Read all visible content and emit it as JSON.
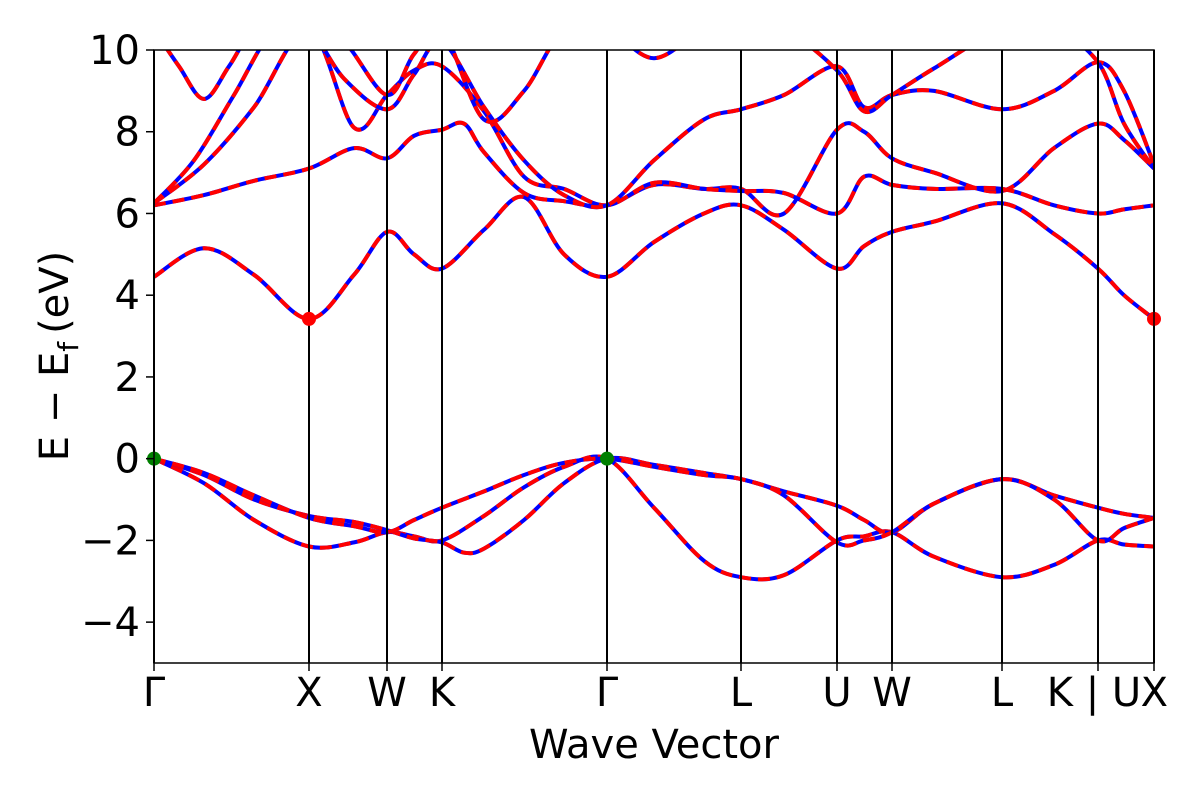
{
  "chart_data": {
    "type": "line",
    "title": "",
    "xlabel": "Wave Vector",
    "ylabel_main": "E − E",
    "ylabel_subscript": "f",
    "ylabel_unit": "(eV)",
    "ylim": [
      -5,
      10
    ],
    "xlim": [
      0,
      1
    ],
    "yticks": [
      -4,
      -2,
      0,
      2,
      4,
      6,
      8,
      10
    ],
    "ytick_labels": [
      "−4",
      "−2",
      "0",
      "2",
      "4",
      "6",
      "8",
      "10"
    ],
    "kpoints": [
      {
        "label": "Γ",
        "x": 0.0
      },
      {
        "label": "X",
        "x": 0.155
      },
      {
        "label": "W",
        "x": 0.233
      },
      {
        "label": "K",
        "x": 0.288
      },
      {
        "label": "Γ",
        "x": 0.453
      },
      {
        "label": "L",
        "x": 0.587
      },
      {
        "label": "U",
        "x": 0.683
      },
      {
        "label": "W",
        "x": 0.738
      },
      {
        "label": "L",
        "x": 0.848
      },
      {
        "label": "K | U",
        "x": 0.944
      },
      {
        "label": "X",
        "x": 1.0
      }
    ],
    "colors": {
      "band_solid": "#0000ff",
      "band_dashed": "#ff0000",
      "cbm": "#ff0000",
      "vbm": "#008000",
      "axis": "#000000"
    },
    "band_extrema": {
      "cbm": [
        {
          "x": 0.155,
          "y": 3.42
        },
        {
          "x": 1.0,
          "y": 3.42
        }
      ],
      "vbm": [
        {
          "x": 0.0,
          "y": 0.0
        },
        {
          "x": 0.453,
          "y": 0.0
        }
      ]
    },
    "bands": [
      {
        "x": [
          0,
          0.05,
          0.1,
          0.155,
          0.2,
          0.233,
          0.26,
          0.288,
          0.33,
          0.37,
          0.41,
          0.453,
          0.5,
          0.55,
          0.587,
          0.63,
          0.683,
          0.71,
          0.738,
          0.78,
          0.848,
          0.9,
          0.944,
          0.97,
          1.0
        ],
        "y": [
          0,
          -0.6,
          -1.5,
          -2.15,
          -2.05,
          -1.8,
          -1.9,
          -2.0,
          -1.4,
          -0.7,
          -0.2,
          0,
          -1.2,
          -2.5,
          -2.9,
          -2.85,
          -2.0,
          -1.9,
          -1.8,
          -2.4,
          -2.9,
          -2.6,
          -2.0,
          -2.1,
          -2.15
        ]
      },
      {
        "x": [
          0,
          0.05,
          0.1,
          0.155,
          0.2,
          0.233,
          0.26,
          0.288,
          0.31,
          0.33,
          0.37,
          0.41,
          0.453,
          0.5,
          0.55,
          0.587,
          0.63,
          0.683,
          0.71,
          0.738,
          0.78,
          0.848,
          0.9,
          0.944,
          0.97,
          1.0
        ],
        "y": [
          0,
          -0.4,
          -1.0,
          -1.4,
          -1.55,
          -1.75,
          -1.95,
          -2.05,
          -2.3,
          -2.2,
          -1.5,
          -0.6,
          0,
          -0.15,
          -0.35,
          -0.5,
          -0.8,
          -1.15,
          -1.5,
          -1.8,
          -1.1,
          -0.5,
          -0.9,
          -1.2,
          -1.35,
          -1.45
        ]
      },
      {
        "x": [
          0,
          0.05,
          0.1,
          0.155,
          0.2,
          0.233,
          0.26,
          0.288,
          0.33,
          0.37,
          0.41,
          0.453,
          0.5,
          0.55,
          0.587,
          0.63,
          0.683,
          0.71,
          0.738,
          0.78,
          0.848,
          0.9,
          0.944,
          0.97,
          1.0
        ],
        "y": [
          0,
          -0.35,
          -0.9,
          -1.45,
          -1.65,
          -1.8,
          -1.5,
          -1.2,
          -0.8,
          -0.4,
          -0.1,
          0,
          -0.2,
          -0.4,
          -0.5,
          -0.9,
          -2.05,
          -2.0,
          -1.8,
          -1.1,
          -0.5,
          -1.0,
          -2.0,
          -1.7,
          -1.45
        ]
      },
      {
        "x": [
          0,
          0.05,
          0.1,
          0.155,
          0.2,
          0.233,
          0.26,
          0.288,
          0.33,
          0.37,
          0.41,
          0.453,
          0.5,
          0.55,
          0.587,
          0.63,
          0.683,
          0.71,
          0.738,
          0.78,
          0.848,
          0.9,
          0.944,
          0.97,
          1.0
        ],
        "y": [
          4.45,
          5.15,
          4.5,
          3.42,
          4.5,
          5.55,
          5.0,
          4.65,
          5.6,
          6.4,
          5.0,
          4.45,
          5.3,
          6.0,
          6.2,
          5.6,
          4.65,
          5.2,
          5.55,
          5.8,
          6.25,
          5.5,
          4.65,
          4.0,
          3.42
        ]
      },
      {
        "x": [
          0,
          0.05,
          0.1,
          0.155,
          0.2,
          0.233,
          0.26,
          0.288,
          0.31,
          0.33,
          0.37,
          0.41,
          0.453,
          0.5,
          0.55,
          0.587,
          0.63,
          0.683,
          0.71,
          0.738,
          0.78,
          0.848,
          0.9,
          0.944,
          0.97,
          1.0
        ],
        "y": [
          6.2,
          6.45,
          6.8,
          7.1,
          7.6,
          7.35,
          7.9,
          8.05,
          8.2,
          7.5,
          6.5,
          6.3,
          6.2,
          6.7,
          6.6,
          6.6,
          6.0,
          8.05,
          8.0,
          7.35,
          7.0,
          6.55,
          7.6,
          8.2,
          7.8,
          7.1
        ]
      },
      {
        "x": [
          0,
          0.05,
          0.1,
          0.155,
          0.2,
          0.233,
          0.26,
          0.288,
          0.33,
          0.37,
          0.41,
          0.453,
          0.5,
          0.55,
          0.587,
          0.63,
          0.683,
          0.71,
          0.738,
          0.78,
          0.848,
          0.9,
          0.944,
          0.97,
          1.0
        ],
        "y": [
          6.25,
          7.2,
          8.6,
          10.5,
          8.1,
          8.9,
          9.5,
          9.6,
          8.5,
          6.9,
          6.6,
          6.2,
          6.75,
          6.6,
          6.55,
          6.5,
          6.0,
          6.9,
          6.7,
          6.6,
          6.6,
          6.2,
          6.0,
          6.1,
          6.2
        ]
      },
      {
        "x": [
          0,
          0.04,
          0.08,
          0.12,
          0.155,
          0.19,
          0.233,
          0.26,
          0.288,
          0.33,
          0.37,
          0.41,
          0.453,
          0.5,
          0.55,
          0.587,
          0.63,
          0.683,
          0.71,
          0.738,
          0.78,
          0.848,
          0.9,
          0.944,
          0.97,
          1.0
        ],
        "y": [
          6.25,
          7.3,
          8.9,
          10.5,
          10.5,
          9.3,
          8.55,
          9.4,
          10.2,
          8.6,
          7.3,
          6.45,
          6.2,
          7.3,
          8.3,
          8.55,
          8.9,
          9.6,
          8.6,
          8.9,
          9.0,
          8.55,
          9.0,
          9.7,
          9.0,
          7.2
        ]
      },
      {
        "x": [
          0,
          0.025,
          0.05,
          0.075,
          0.1,
          0.13,
          0.155,
          0.19,
          0.233,
          0.26,
          0.288,
          0.33,
          0.37,
          0.41,
          0.453,
          0.5,
          0.55,
          0.587,
          0.63,
          0.683,
          0.71,
          0.738,
          0.78,
          0.848,
          0.9,
          0.944,
          0.97,
          1.0
        ],
        "y": [
          10.5,
          9.6,
          8.8,
          9.6,
          10.5,
          10.5,
          10.5,
          10.2,
          8.9,
          9.9,
          10.5,
          8.3,
          9.0,
          10.5,
          10.5,
          9.8,
          10.5,
          10.5,
          10.5,
          9.5,
          8.5,
          8.9,
          9.55,
          10.5,
          10.5,
          9.7,
          8.2,
          7.1
        ]
      }
    ]
  }
}
